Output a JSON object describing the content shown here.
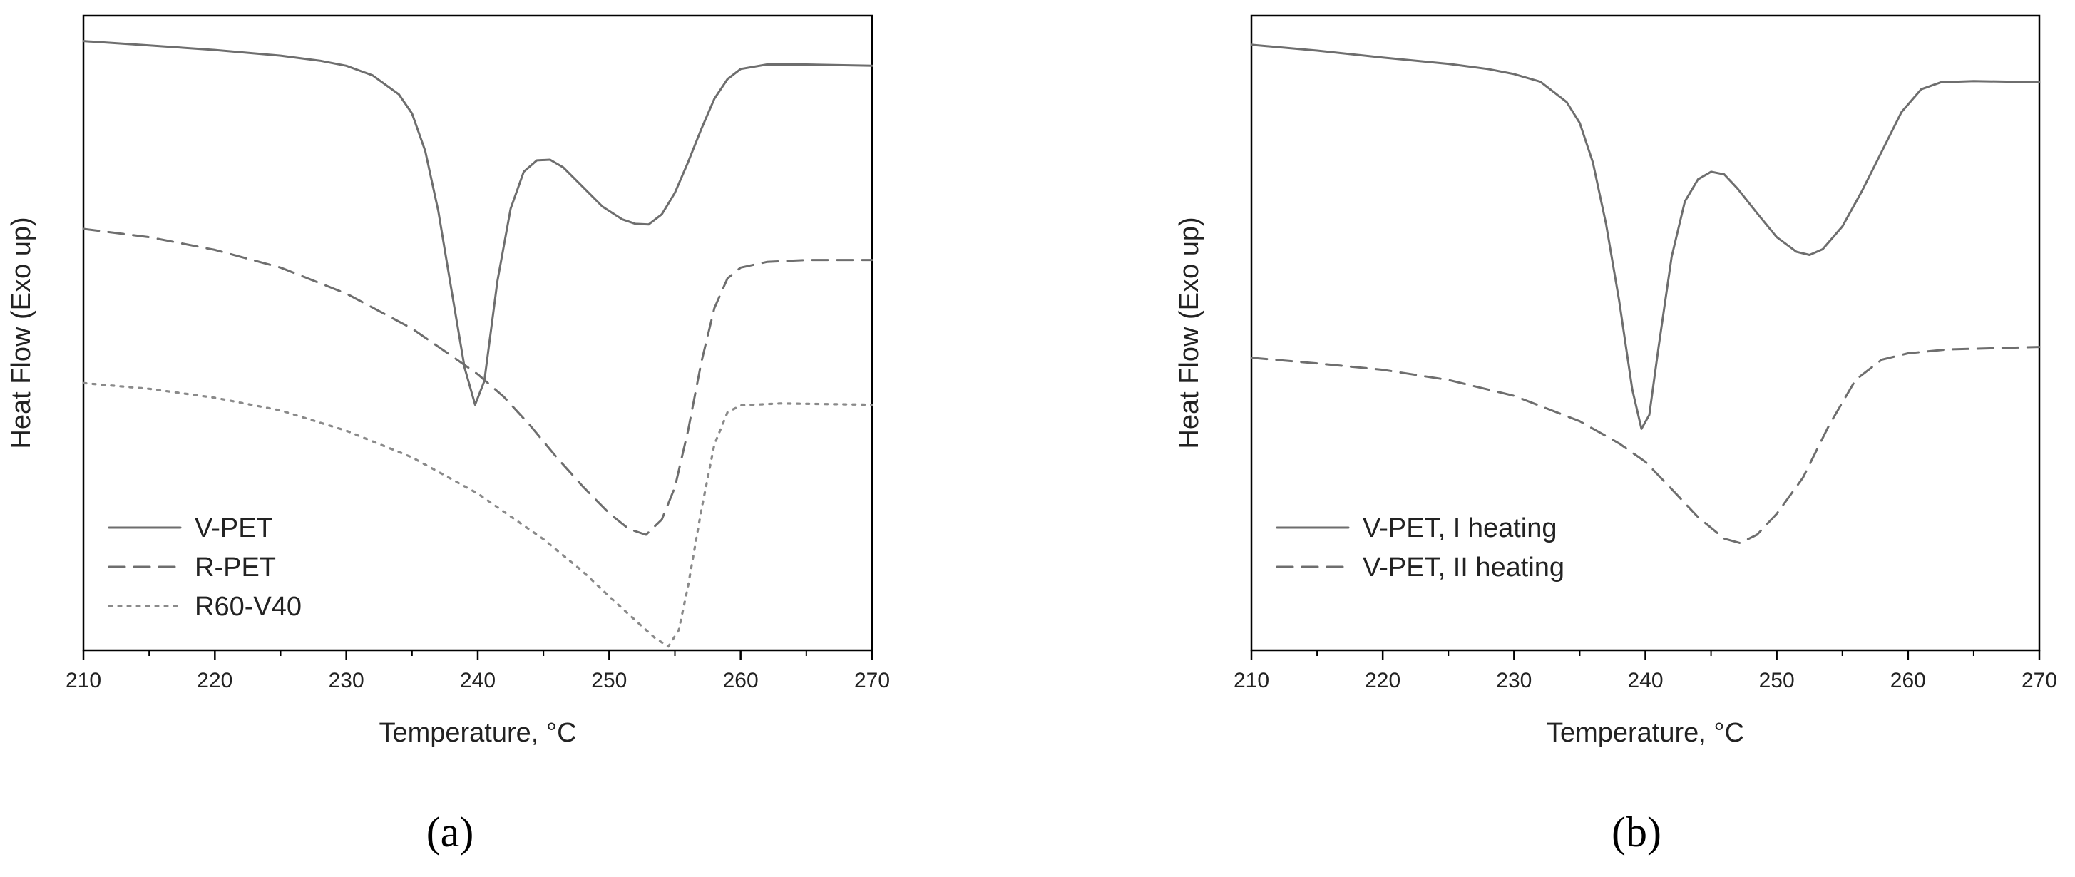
{
  "chart_data": [
    {
      "type": "line",
      "panel_label": "(a)",
      "xlabel": "Temperature, °C",
      "ylabel": "Heat Flow (Exo up)",
      "xlim": [
        210,
        270
      ],
      "x_ticks": [
        "210",
        "220",
        "230",
        "240",
        "250",
        "260",
        "270"
      ],
      "ylim": [
        0,
        100
      ],
      "y_ticks_shown": false,
      "legend_position": "bottom-left",
      "series": [
        {
          "name": "V-PET",
          "style": "solid",
          "color": "#6e6e6e",
          "points": [
            [
              210,
              96
            ],
            [
              215,
              95.3
            ],
            [
              220,
              94.6
            ],
            [
              225,
              93.7
            ],
            [
              228,
              92.9
            ],
            [
              230,
              92.1
            ],
            [
              232,
              90.6
            ],
            [
              234,
              87.6
            ],
            [
              235,
              84.6
            ],
            [
              236,
              78.7
            ],
            [
              237,
              69.2
            ],
            [
              238,
              56.8
            ],
            [
              239,
              44.5
            ],
            [
              239.8,
              38.7
            ],
            [
              240.5,
              42.4
            ],
            [
              241.5,
              58.2
            ],
            [
              242.5,
              69.6
            ],
            [
              243.5,
              75.4
            ],
            [
              244.5,
              77.2
            ],
            [
              245.5,
              77.3
            ],
            [
              246.5,
              76.1
            ],
            [
              248,
              73
            ],
            [
              249.5,
              69.9
            ],
            [
              251,
              67.9
            ],
            [
              252,
              67.2
            ],
            [
              253,
              67.1
            ],
            [
              254,
              68.7
            ],
            [
              255,
              72.1
            ],
            [
              256,
              76.9
            ],
            [
              257,
              82.1
            ],
            [
              258,
              86.9
            ],
            [
              259,
              90
            ],
            [
              260,
              91.6
            ],
            [
              262,
              92.3
            ],
            [
              265,
              92.3
            ],
            [
              270,
              92.1
            ]
          ]
        },
        {
          "name": "R-PET",
          "style": "dashed",
          "color": "#6e6e6e",
          "points": [
            [
              210,
              66.4
            ],
            [
              215,
              65.1
            ],
            [
              220,
              63.1
            ],
            [
              225,
              60.3
            ],
            [
              230,
              56.2
            ],
            [
              235,
              50.7
            ],
            [
              238,
              46.4
            ],
            [
              240,
              43.5
            ],
            [
              242,
              39.9
            ],
            [
              244,
              35.4
            ],
            [
              246,
              30.4
            ],
            [
              248,
              25.8
            ],
            [
              250,
              21.6
            ],
            [
              251.5,
              19.1
            ],
            [
              252.8,
              18.2
            ],
            [
              254,
              20.6
            ],
            [
              255,
              25.7
            ],
            [
              256,
              34.6
            ],
            [
              257,
              45.3
            ],
            [
              258,
              53.9
            ],
            [
              259,
              58.6
            ],
            [
              260,
              60.3
            ],
            [
              262,
              61.2
            ],
            [
              265,
              61.5
            ],
            [
              270,
              61.5
            ]
          ]
        },
        {
          "name": "R60-V40",
          "style": "dotted",
          "color": "#8a8a8a",
          "points": [
            [
              210,
              42.1
            ],
            [
              215,
              41.2
            ],
            [
              220,
              39.8
            ],
            [
              225,
              37.8
            ],
            [
              230,
              34.6
            ],
            [
              235,
              30.4
            ],
            [
              240,
              24.7
            ],
            [
              245,
              17.5
            ],
            [
              248,
              12.4
            ],
            [
              250,
              8.5
            ],
            [
              252,
              4.7
            ],
            [
              253.5,
              1.9
            ],
            [
              254.5,
              0.6
            ],
            [
              255.3,
              3.2
            ],
            [
              256,
              10.1
            ],
            [
              257,
              22
            ],
            [
              258,
              32.4
            ],
            [
              259,
              37.5
            ],
            [
              260,
              38.6
            ],
            [
              263,
              38.9
            ],
            [
              270,
              38.7
            ]
          ]
        }
      ]
    },
    {
      "type": "line",
      "panel_label": "(b)",
      "xlabel": "Temperature, °C",
      "ylabel": "Heat Flow (Exo up)",
      "xlim": [
        210,
        270
      ],
      "x_ticks": [
        "210",
        "220",
        "230",
        "240",
        "250",
        "260",
        "270"
      ],
      "ylim": [
        0,
        100
      ],
      "y_ticks_shown": false,
      "legend_position": "bottom-left",
      "series": [
        {
          "name": "V-PET, I heating",
          "style": "solid",
          "color": "#6e6e6e",
          "points": [
            [
              210,
              95.4
            ],
            [
              215,
              94.5
            ],
            [
              220,
              93.4
            ],
            [
              225,
              92.4
            ],
            [
              228,
              91.6
            ],
            [
              230,
              90.8
            ],
            [
              232,
              89.6
            ],
            [
              234,
              86.4
            ],
            [
              235,
              83.1
            ],
            [
              236,
              76.9
            ],
            [
              237,
              67.2
            ],
            [
              238,
              55.1
            ],
            [
              239,
              41.1
            ],
            [
              239.7,
              34.9
            ],
            [
              240.3,
              37.1
            ],
            [
              241,
              47.7
            ],
            [
              242,
              62
            ],
            [
              243,
              70.7
            ],
            [
              244,
              74.2
            ],
            [
              245,
              75.4
            ],
            [
              246,
              75
            ],
            [
              247,
              72.8
            ],
            [
              248.5,
              68.9
            ],
            [
              250,
              65.1
            ],
            [
              251.5,
              62.8
            ],
            [
              252.5,
              62.3
            ],
            [
              253.5,
              63.2
            ],
            [
              255,
              66.8
            ],
            [
              256.5,
              72.4
            ],
            [
              258,
              78.6
            ],
            [
              259.5,
              84.8
            ],
            [
              261,
              88.4
            ],
            [
              262.5,
              89.5
            ],
            [
              265,
              89.7
            ],
            [
              270,
              89.5
            ]
          ]
        },
        {
          "name": "V-PET, II heating",
          "style": "dashed",
          "color": "#6e6e6e",
          "points": [
            [
              210,
              46.1
            ],
            [
              215,
              45.2
            ],
            [
              220,
              44.2
            ],
            [
              225,
              42.6
            ],
            [
              230,
              40.1
            ],
            [
              235,
              36.1
            ],
            [
              238,
              32.6
            ],
            [
              240,
              29.7
            ],
            [
              242,
              25.4
            ],
            [
              244,
              21
            ],
            [
              246,
              17.6
            ],
            [
              247.2,
              16.9
            ],
            [
              248.5,
              18.2
            ],
            [
              250,
              21.5
            ],
            [
              252,
              27.2
            ],
            [
              254,
              35.5
            ],
            [
              256,
              42.6
            ],
            [
              258,
              45.8
            ],
            [
              260,
              46.8
            ],
            [
              263,
              47.4
            ],
            [
              270,
              47.8
            ]
          ]
        }
      ]
    }
  ]
}
